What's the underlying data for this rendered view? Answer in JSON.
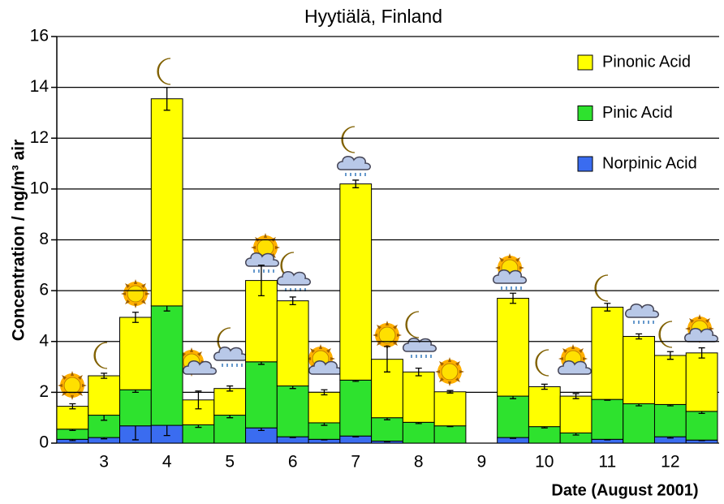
{
  "chart_data": {
    "type": "stacked_bar",
    "title": "Hyytiälä, Finland",
    "x_label": "Date (August 2001)",
    "y_label": "Concentration / ng/m³ air",
    "categories": [
      null,
      "3",
      null,
      "4",
      null,
      "5",
      null,
      "6",
      null,
      "7",
      null,
      "8",
      null,
      "9",
      null,
      "10",
      null,
      "11",
      null,
      "12",
      null
    ],
    "series": [
      {
        "name": "Norpinic Acid",
        "color": "#3a6cf0",
        "values": [
          0.15,
          0.22,
          0.68,
          0.7,
          0,
          0,
          0.6,
          0.25,
          0.15,
          0.28,
          0.08,
          0,
          0,
          null,
          0.22,
          0,
          0,
          0.15,
          0,
          0.25,
          0.12
        ],
        "errors": [
          0.05,
          0.05,
          0.55,
          0.4,
          null,
          null,
          0.1,
          0.03,
          0.02,
          0.03,
          0.02,
          null,
          null,
          null,
          0.03,
          null,
          null,
          0.02,
          null,
          0.05,
          0.02
        ]
      },
      {
        "name": "Pinic Acid",
        "color": "#2ee22e",
        "values": [
          0.4,
          0.88,
          1.42,
          4.7,
          0.72,
          1.1,
          2.6,
          2.0,
          0.65,
          2.2,
          0.92,
          0.82,
          0.68,
          null,
          1.63,
          0.65,
          0.4,
          1.57,
          1.55,
          1.27,
          1.13
        ],
        "errors": [
          0.05,
          0.2,
          0.1,
          0.2,
          0.1,
          0.1,
          0.1,
          0.1,
          0.1,
          0.05,
          0.08,
          0.05,
          0.03,
          null,
          0.1,
          0.05,
          0.08,
          0.03,
          0.08,
          0.05,
          0.08
        ]
      },
      {
        "name": "Pinonic Acid",
        "color": "#ffff00",
        "values": [
          0.9,
          1.55,
          2.85,
          8.15,
          0.98,
          1.05,
          3.2,
          3.35,
          1.2,
          7.72,
          2.3,
          1.98,
          1.34,
          null,
          3.85,
          1.57,
          1.45,
          3.63,
          2.65,
          1.93,
          2.3
        ],
        "errors": [
          0.1,
          0.1,
          0.2,
          0.45,
          0.35,
          0.1,
          0.6,
          0.15,
          0.1,
          0.15,
          0.5,
          0.15,
          0.05,
          null,
          0.2,
          0.1,
          0.1,
          0.15,
          0.1,
          0.15,
          0.2
        ]
      }
    ],
    "ylim": [
      0,
      16
    ],
    "yticks": [
      0,
      2,
      4,
      6,
      8,
      10,
      12,
      14,
      16
    ],
    "grid": true,
    "legend": "upper right"
  }
}
